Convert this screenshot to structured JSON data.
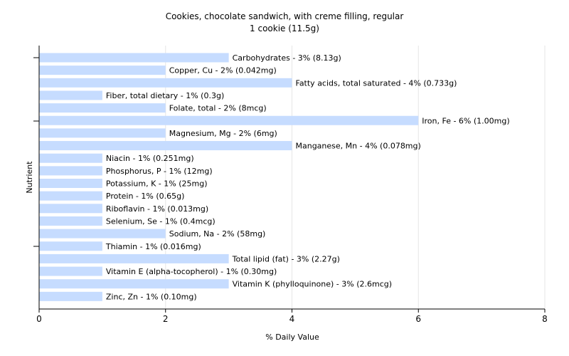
{
  "chart_data": {
    "type": "bar",
    "orientation": "horizontal",
    "title": "Cookies, chocolate sandwich, with creme filling, regular",
    "subtitle": "1 cookie (11.5g)",
    "xlabel": "% Daily Value",
    "ylabel": "Nutrient",
    "xlim": [
      0,
      8
    ],
    "xticks": [
      0,
      2,
      4,
      6,
      8
    ],
    "grid": "vertical",
    "bar_color": "#c6dcff",
    "categories": [
      "Carbohydrates",
      "Copper, Cu",
      "Fatty acids, total saturated",
      "Fiber, total dietary",
      "Folate, total",
      "Iron, Fe",
      "Magnesium, Mg",
      "Manganese, Mn",
      "Niacin",
      "Phosphorus, P",
      "Potassium, K",
      "Protein",
      "Riboflavin",
      "Selenium, Se",
      "Sodium, Na",
      "Thiamin",
      "Total lipid (fat)",
      "Vitamin E (alpha-tocopherol)",
      "Vitamin K (phylloquinone)",
      "Zinc, Zn"
    ],
    "values": [
      3,
      2,
      4,
      1,
      2,
      6,
      2,
      4,
      1,
      1,
      1,
      1,
      1,
      1,
      2,
      1,
      3,
      1,
      3,
      1
    ],
    "labels": [
      "Carbohydrates - 3% (8.13g)",
      "Copper, Cu - 2% (0.042mg)",
      "Fatty acids, total saturated - 4% (0.733g)",
      "Fiber, total dietary - 1% (0.3g)",
      "Folate, total - 2% (8mcg)",
      "Iron, Fe - 6% (1.00mg)",
      "Magnesium, Mg - 2% (6mg)",
      "Manganese, Mn - 4% (0.078mg)",
      "Niacin - 1% (0.251mg)",
      "Phosphorus, P - 1% (12mg)",
      "Potassium, K - 1% (25mg)",
      "Protein - 1% (0.65g)",
      "Riboflavin - 1% (0.013mg)",
      "Selenium, Se - 1% (0.4mcg)",
      "Sodium, Na - 2% (58mg)",
      "Thiamin - 1% (0.016mg)",
      "Total lipid (fat) - 3% (2.27g)",
      "Vitamin E (alpha-tocopherol) - 1% (0.30mg)",
      "Vitamin K (phylloquinone) - 3% (2.6mcg)",
      "Zinc, Zn - 1% (0.10mg)"
    ]
  }
}
